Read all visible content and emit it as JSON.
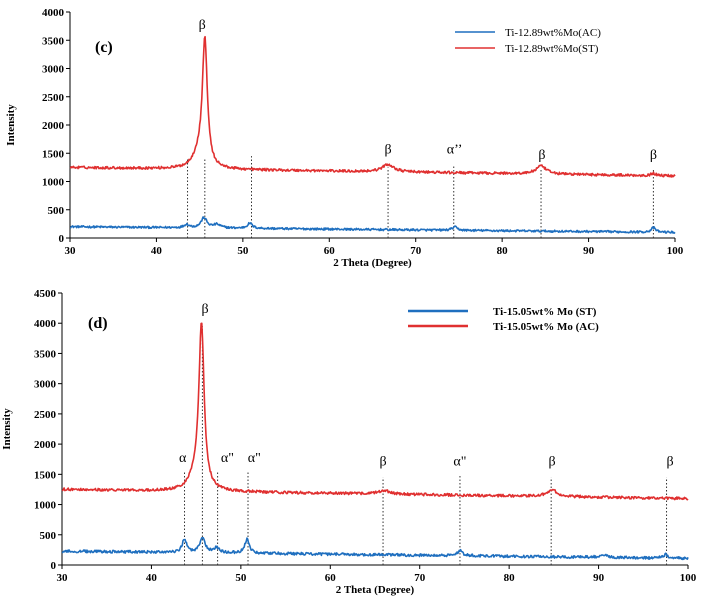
{
  "chart_data": [
    {
      "type": "line",
      "panel_label": "(c)",
      "xlabel": "2 Theta (Degree)",
      "ylabel": "Intensity",
      "xlim": [
        30,
        100
      ],
      "ylim": [
        0,
        4000
      ],
      "xticks": [
        30,
        40,
        50,
        60,
        70,
        80,
        90,
        100
      ],
      "yticks": [
        0,
        500,
        1000,
        1500,
        2000,
        2500,
        3000,
        3500,
        4000
      ],
      "legend_position": "top-right",
      "series": [
        {
          "name": "Ti-12.89wt%Mo(AC)",
          "color": "#1f6fbf",
          "baseline": 200,
          "baseline_end": 100,
          "noise": 18,
          "peaks": [
            {
              "x": 43.5,
              "h": 60,
              "w": 0.35
            },
            {
              "x": 45.5,
              "h": 180,
              "w": 0.4
            },
            {
              "x": 47.0,
              "h": 60,
              "w": 0.5
            },
            {
              "x": 50.8,
              "h": 90,
              "w": 0.35
            },
            {
              "x": 74.5,
              "h": 60,
              "w": 0.35
            },
            {
              "x": 97.5,
              "h": 80,
              "w": 0.3
            }
          ]
        },
        {
          "name": "Ti-12.89wt%Mo(ST)",
          "color": "#e03030",
          "baseline": 1250,
          "baseline_end": 1100,
          "noise": 22,
          "peaks": [
            {
              "x": 45.6,
              "h": 2250,
              "w": 0.35
            },
            {
              "x": 44.8,
              "h": 200,
              "w": 0.8
            },
            {
              "x": 66.8,
              "h": 130,
              "w": 0.8
            },
            {
              "x": 84.5,
              "h": 140,
              "w": 0.7
            },
            {
              "x": 97.5,
              "h": 40,
              "w": 0.3
            }
          ]
        }
      ],
      "peak_annotations": [
        {
          "label": "β",
          "x": 45.3,
          "y": 3700
        },
        {
          "label": "β",
          "x": 66.8,
          "y": 1500
        },
        {
          "label": "α’’",
          "x": 74.5,
          "y": 1500
        },
        {
          "label": "β",
          "x": 84.6,
          "y": 1400
        },
        {
          "label": "β",
          "x": 97.5,
          "y": 1400
        }
      ],
      "marker_lines": [
        {
          "x": 43.6,
          "y0": 0,
          "y1": 1400
        },
        {
          "x": 45.6,
          "y0": 0,
          "y1": 1400
        },
        {
          "x": 51.0,
          "y0": 0,
          "y1": 1450
        },
        {
          "x": 66.8,
          "y0": 0,
          "y1": 1250
        },
        {
          "x": 74.4,
          "y0": 0,
          "y1": 1300
        },
        {
          "x": 84.5,
          "y0": 0,
          "y1": 1220
        },
        {
          "x": 97.5,
          "y0": 0,
          "y1": 1220
        }
      ]
    },
    {
      "type": "line",
      "panel_label": "(d)",
      "xlabel": "2 Theta (Degree)",
      "ylabel": "Intensity",
      "xlim": [
        30,
        100
      ],
      "ylim": [
        0,
        4500
      ],
      "xticks": [
        30,
        40,
        50,
        60,
        70,
        80,
        90,
        100
      ],
      "yticks": [
        0,
        500,
        1000,
        1500,
        2000,
        2500,
        3000,
        3500,
        4000,
        4500
      ],
      "legend_position": "top-right",
      "series": [
        {
          "name": "Ti-15.05wt% Mo (ST)",
          "color": "#1f6fbf",
          "baseline": 230,
          "baseline_end": 110,
          "noise": 22,
          "peaks": [
            {
              "x": 43.7,
              "h": 220,
              "w": 0.3
            },
            {
              "x": 45.7,
              "h": 250,
              "w": 0.35
            },
            {
              "x": 47.3,
              "h": 80,
              "w": 0.4
            },
            {
              "x": 50.7,
              "h": 230,
              "w": 0.3
            },
            {
              "x": 74.5,
              "h": 80,
              "w": 0.35
            },
            {
              "x": 90.5,
              "h": 40,
              "w": 0.5
            },
            {
              "x": 97.5,
              "h": 60,
              "w": 0.3
            }
          ]
        },
        {
          "name": "Ti-15.05wt% Mo (AC)",
          "color": "#e03030",
          "baseline": 1250,
          "baseline_end": 1100,
          "noise": 22,
          "peaks": [
            {
              "x": 45.6,
              "h": 2700,
              "w": 0.35
            },
            {
              "x": 44.9,
              "h": 200,
              "w": 0.8
            },
            {
              "x": 66.0,
              "h": 60,
              "w": 0.8
            },
            {
              "x": 84.8,
              "h": 110,
              "w": 0.7
            }
          ]
        }
      ],
      "peak_annotations": [
        {
          "label": "α",
          "x": 43.5,
          "y": 1700
        },
        {
          "label": "β",
          "x": 46.0,
          "y": 4170
        },
        {
          "label": "α\"",
          "x": 48.5,
          "y": 1700
        },
        {
          "label": "α\"",
          "x": 51.5,
          "y": 1700
        },
        {
          "label": "β",
          "x": 65.9,
          "y": 1650
        },
        {
          "label": "α\"",
          "x": 74.5,
          "y": 1650
        },
        {
          "label": "β",
          "x": 84.8,
          "y": 1650
        },
        {
          "label": "β",
          "x": 98.0,
          "y": 1650
        }
      ],
      "marker_lines": [
        {
          "x": 43.7,
          "y0": 0,
          "y1": 1530
        },
        {
          "x": 45.7,
          "y0": 0,
          "y1": 3950
        },
        {
          "x": 47.4,
          "y0": 0,
          "y1": 1560
        },
        {
          "x": 50.8,
          "y0": 0,
          "y1": 1560
        },
        {
          "x": 65.9,
          "y0": 0,
          "y1": 1450
        },
        {
          "x": 74.5,
          "y0": 0,
          "y1": 1500
        },
        {
          "x": 84.7,
          "y0": 0,
          "y1": 1450
        },
        {
          "x": 97.6,
          "y0": 0,
          "y1": 1450
        }
      ]
    }
  ]
}
